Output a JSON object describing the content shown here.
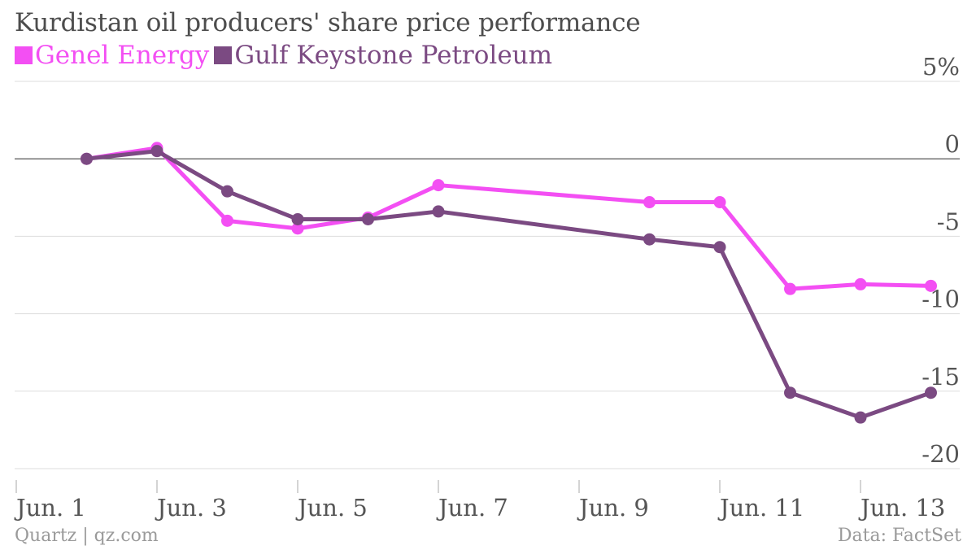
{
  "header": {
    "title": "Kurdistan oil producers' share price performance"
  },
  "footer": {
    "source_left": "Quartz | qz.com",
    "source_right": "Data: FactSet"
  },
  "chart_data": {
    "type": "line",
    "title": "Kurdistan oil producers' share price performance",
    "xlabel": "",
    "ylabel": "",
    "x_ticks": [
      "Jun. 1",
      "Jun. 3",
      "Jun. 5",
      "Jun. 7",
      "Jun. 9",
      "Jun. 11",
      "Jun. 13"
    ],
    "y_ticks": [
      "5%",
      "0",
      "-5",
      "-10",
      "-15",
      "-20"
    ],
    "ylim": [
      -20,
      5
    ],
    "legend_position": "top-left",
    "grid": true,
    "series": [
      {
        "name": "Genel Energy",
        "color": "#f34ff3",
        "points": [
          {
            "x": "2014-06-02",
            "y": 0
          },
          {
            "x": "2014-06-03",
            "y": 0.7
          },
          {
            "x": "2014-06-04",
            "y": -4.0
          },
          {
            "x": "2014-06-05",
            "y": -4.5
          },
          {
            "x": "2014-06-06",
            "y": -3.8
          },
          {
            "x": "2014-06-07",
            "y": -1.7
          },
          {
            "x": "2014-06-10",
            "y": -2.8
          },
          {
            "x": "2014-06-11",
            "y": -2.8
          },
          {
            "x": "2014-06-12",
            "y": -8.4
          },
          {
            "x": "2014-06-13",
            "y": -8.1
          },
          {
            "x": "2014-06-14",
            "y": -8.2
          }
        ]
      },
      {
        "name": "Gulf Keystone Petroleum",
        "color": "#7b4a82",
        "points": [
          {
            "x": "2014-06-02",
            "y": 0
          },
          {
            "x": "2014-06-03",
            "y": 0.5
          },
          {
            "x": "2014-06-04",
            "y": -2.1
          },
          {
            "x": "2014-06-05",
            "y": -3.9
          },
          {
            "x": "2014-06-06",
            "y": -3.9
          },
          {
            "x": "2014-06-07",
            "y": -3.4
          },
          {
            "x": "2014-06-10",
            "y": -5.2
          },
          {
            "x": "2014-06-11",
            "y": -5.7
          },
          {
            "x": "2014-06-12",
            "y": -15.1
          },
          {
            "x": "2014-06-13",
            "y": -16.7
          },
          {
            "x": "2014-06-14",
            "y": -15.1
          }
        ]
      }
    ]
  }
}
